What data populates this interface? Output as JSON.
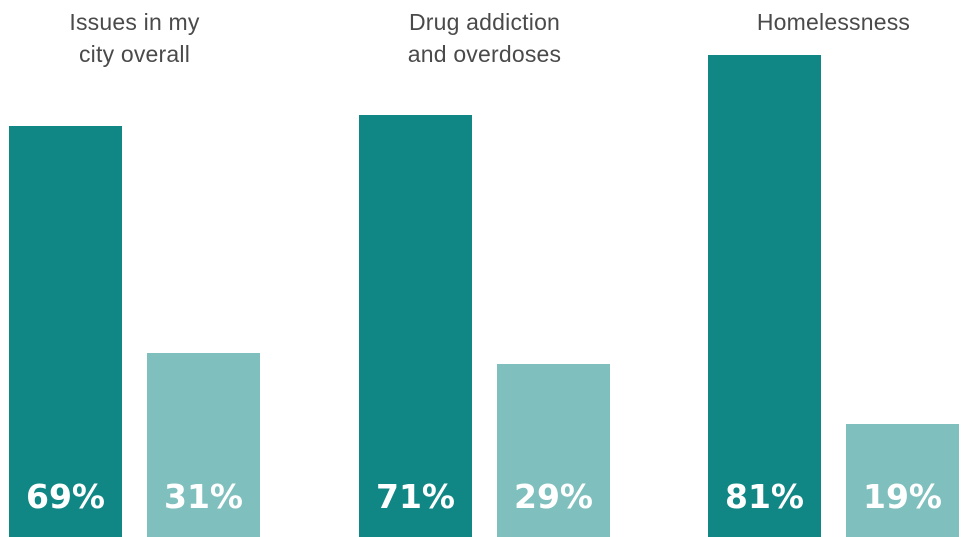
{
  "chart_data": {
    "type": "bar",
    "categories": [
      [
        "Issues in my",
        "city overall"
      ],
      [
        "Drug addiction",
        "and overdoses"
      ],
      [
        "Homelessness"
      ]
    ],
    "series": [
      {
        "values": [
          69,
          71,
          81
        ],
        "labels": [
          "69%",
          "71%",
          "81%"
        ],
        "color": "#108784"
      },
      {
        "values": [
          31,
          29,
          19
        ],
        "labels": [
          "31%",
          "29%",
          "19%"
        ],
        "color": "#7fbfbd"
      }
    ],
    "ylim": [
      0,
      100
    ],
    "grid": false,
    "legend": "none"
  }
}
